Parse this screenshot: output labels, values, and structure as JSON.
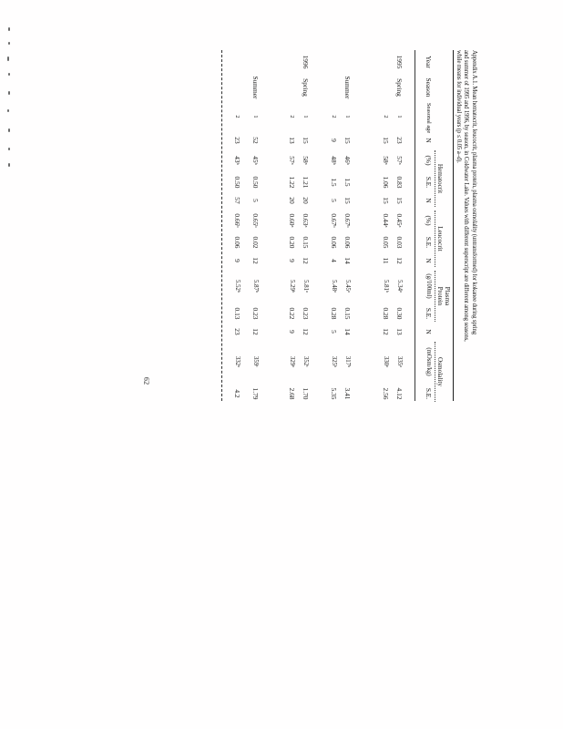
{
  "caption": {
    "line1": "Appendix A.1. Mean hematocrit, leucocrit, plasma protein, plasma osmolality (untransformed) for kokanee during spring",
    "line2": "and summer of 1995 and 1996, by season, in Coldwater Lake. Values with different superscript are different among seasons,",
    "line3": "while means for individual years (p ≤ 0.05 a–d)."
  },
  "page": {
    "number": "62"
  },
  "table": {
    "groups": {
      "hematocrit": "Hematocrit",
      "leucocrit": "Leucocrit",
      "plasma_line1": "Plasma",
      "plasma_line2": "Protein",
      "osmolality": "Osmolality"
    },
    "columns": [
      "Year",
      "Season",
      "Seasonal age",
      "N",
      "(%)",
      "S.E.",
      "N",
      "(%)",
      "S.E.",
      "N",
      "(g/100ml)",
      "S.E.",
      "N",
      "(mOsm/kg)",
      "S.E."
    ],
    "rows": [
      {
        "cells": [
          "1995",
          "Spring",
          "1",
          "23",
          "57ᵃ",
          "0.83",
          "15",
          "0.45ᵃ",
          "0.03",
          "12",
          "5.34ᵃ",
          "0.30",
          "13",
          "335ᵃ",
          "4.12"
        ]
      },
      {
        "cells": [
          "",
          "",
          "2",
          "15",
          "58ᵃ",
          "1.06",
          "15",
          "0.44ᵃ",
          "0.05",
          "11",
          "5.81ᵇ",
          "0.28",
          "12",
          "330ᵃ",
          "2.56"
        ]
      },
      {
        "cells": [
          "",
          "Summer",
          "1",
          "15",
          "46ᵇ",
          "1.5",
          "15",
          "0.67ᵇ",
          "0.06",
          "14",
          "5.45ᵃ",
          "0.15",
          "14",
          "317ᵇ",
          "3.41"
        ]
      },
      {
        "cells": [
          "",
          "",
          "2",
          "9",
          "48ᵇ",
          "1.5",
          "5",
          "0.67ᵇ",
          "0.06",
          "4",
          "5.48ᵃ",
          "0.28",
          "5",
          "325ᵇ",
          "5.35"
        ]
      },
      {
        "cells": [
          "1996",
          "Spring",
          "1",
          "15",
          "58ᵃ",
          "1.21",
          "20",
          "0.63ᵃ",
          "0.15",
          "12",
          "5.81ᵃ",
          "0.23",
          "12",
          "352ᶜ",
          "1.70"
        ]
      },
      {
        "cells": [
          "",
          "",
          "2",
          "13",
          "57ᵃ",
          "1.22",
          "20",
          "0.60ᵃ",
          "0.20",
          "9",
          "5.29ᵇ",
          "0.22",
          "9",
          "329ᵃ",
          "2.68"
        ]
      },
      {
        "cells": [
          "",
          "Summer",
          "1",
          "52",
          "45ᵇ",
          "0.50",
          "5",
          "0.65ᵇ",
          "0.02",
          "12",
          "5.87ᵇ",
          "0.23",
          "12",
          "359ᶜ",
          "1.79"
        ]
      },
      {
        "cells": [
          "",
          "",
          "2",
          "23",
          "43ᵇ",
          "0.50",
          "57",
          "0.66ᵇ",
          "0.06",
          "9",
          "5.52ᵇ",
          "0.13",
          "23",
          "332ᵃ",
          "4.2"
        ]
      }
    ]
  }
}
